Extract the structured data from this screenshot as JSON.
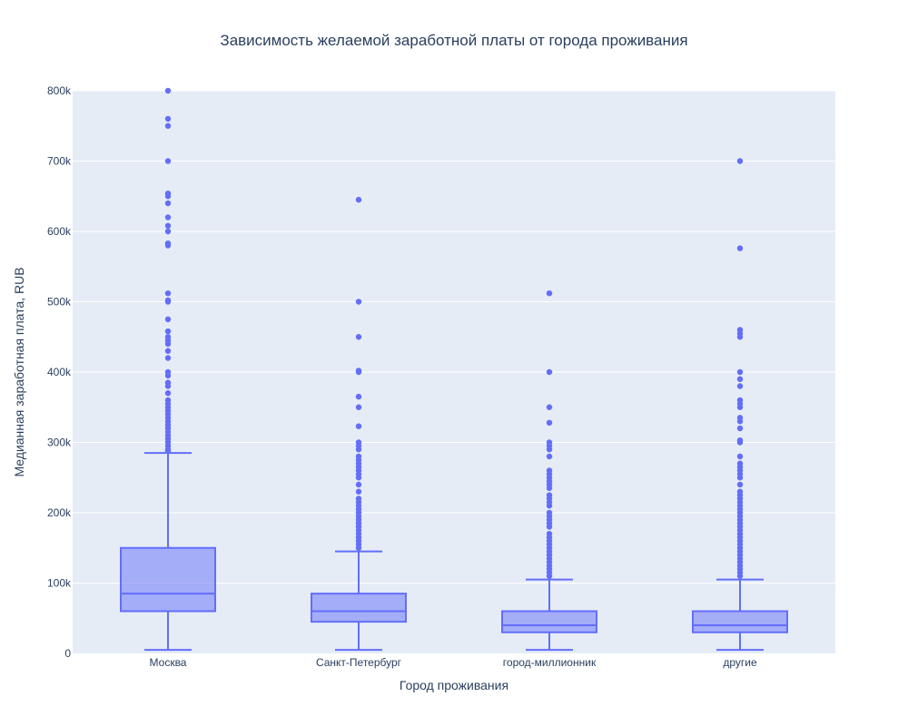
{
  "chart_data": {
    "type": "box",
    "title": "Зависимость желаемой заработной платы от города проживания",
    "xlabel": "Город проживания",
    "ylabel": "Медианная заработная плата, RUB",
    "ylim": [
      0,
      800000
    ],
    "yticks": [
      0,
      100000,
      200000,
      300000,
      400000,
      500000,
      600000,
      700000,
      800000
    ],
    "ytick_labels": [
      "0",
      "100k",
      "200k",
      "300k",
      "400k",
      "500k",
      "600k",
      "700k",
      "800k"
    ],
    "grid": true,
    "colors": {
      "box": "#636efa",
      "plot_bg": "#e5ecf6",
      "grid": "#ffffff",
      "text": "#2a3f5f"
    },
    "categories": [
      "Москва",
      "Санкт-Петербург",
      "город-миллионник",
      "другие"
    ],
    "boxes": [
      {
        "category": "Москва",
        "lower_whisker": 5000,
        "q1": 60000,
        "median": 85000,
        "q3": 150000,
        "upper_whisker": 285000,
        "outliers": [
          288000,
          290000,
          295000,
          300000,
          305000,
          310000,
          315000,
          320000,
          325000,
          330000,
          335000,
          340000,
          345000,
          350000,
          355000,
          360000,
          370000,
          380000,
          385000,
          395000,
          400000,
          420000,
          430000,
          440000,
          445000,
          450000,
          458000,
          475000,
          500000,
          502000,
          512000,
          580000,
          583000,
          600000,
          608000,
          620000,
          640000,
          650000,
          654000,
          700000,
          750000,
          760000,
          800000
        ]
      },
      {
        "category": "Санкт-Петербург",
        "lower_whisker": 5000,
        "q1": 45000,
        "median": 60000,
        "q3": 85000,
        "upper_whisker": 145000,
        "outliers": [
          150000,
          155000,
          160000,
          165000,
          170000,
          175000,
          180000,
          185000,
          190000,
          195000,
          200000,
          205000,
          210000,
          215000,
          220000,
          230000,
          240000,
          250000,
          255000,
          260000,
          265000,
          270000,
          275000,
          280000,
          290000,
          295000,
          300000,
          323000,
          350000,
          365000,
          400000,
          402000,
          450000,
          500000,
          645000
        ]
      },
      {
        "category": "город-миллионник",
        "lower_whisker": 5000,
        "q1": 30000,
        "median": 40000,
        "q3": 60000,
        "upper_whisker": 105000,
        "outliers": [
          110000,
          115000,
          120000,
          125000,
          130000,
          135000,
          140000,
          145000,
          150000,
          155000,
          160000,
          165000,
          170000,
          180000,
          185000,
          190000,
          195000,
          200000,
          210000,
          215000,
          220000,
          225000,
          235000,
          240000,
          245000,
          250000,
          255000,
          260000,
          280000,
          290000,
          295000,
          300000,
          328000,
          350000,
          400000,
          512000
        ]
      },
      {
        "category": "другие",
        "lower_whisker": 5000,
        "q1": 30000,
        "median": 40000,
        "q3": 60000,
        "upper_whisker": 105000,
        "outliers": [
          110000,
          115000,
          120000,
          125000,
          130000,
          135000,
          140000,
          145000,
          150000,
          155000,
          160000,
          165000,
          170000,
          175000,
          180000,
          185000,
          190000,
          195000,
          200000,
          205000,
          210000,
          215000,
          220000,
          225000,
          230000,
          240000,
          250000,
          255000,
          260000,
          265000,
          270000,
          280000,
          300000,
          303000,
          320000,
          330000,
          335000,
          350000,
          355000,
          360000,
          380000,
          390000,
          400000,
          450000,
          455000,
          460000,
          576000,
          700000
        ]
      }
    ]
  }
}
